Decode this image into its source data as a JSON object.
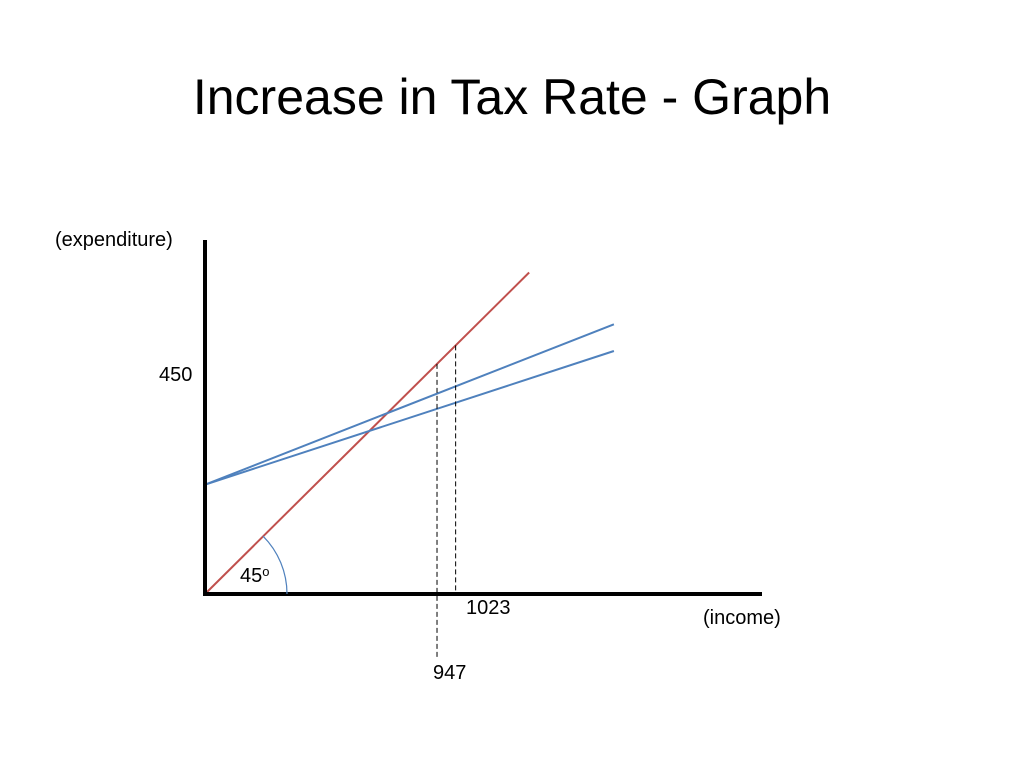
{
  "slide": {
    "title": "Increase in Tax Rate - Graph"
  },
  "chart_data": {
    "type": "line",
    "title": "Increase in Tax Rate - Graph",
    "xlabel": "(income)",
    "ylabel": "(expenditure)",
    "xlim": [
      0,
      1522
    ],
    "ylim": [
      0,
      1125
    ],
    "grid": false,
    "legend": "none",
    "angle_label": "45",
    "angle_label_sup": "o",
    "y_tick": {
      "value": 450,
      "label": "450"
    },
    "x_markers": [
      {
        "value": 947,
        "label": "947",
        "y": 947
      },
      {
        "value": 1023,
        "label": "1023",
        "y": 1023
      }
    ],
    "series": [
      {
        "kind": "reference-45",
        "color": "#c0504d",
        "points": [
          [
            0,
            0
          ],
          [
            1323,
            1323
          ]
        ]
      },
      {
        "kind": "aggregate-expenditure-original",
        "color": "#4f81bd",
        "points": [
          [
            0,
            450
          ],
          [
            1669,
            1110
          ]
        ]
      },
      {
        "kind": "aggregate-expenditure-higher-tax",
        "color": "#4f81bd",
        "points": [
          [
            0,
            450
          ],
          [
            1669,
            1000
          ]
        ]
      }
    ]
  }
}
